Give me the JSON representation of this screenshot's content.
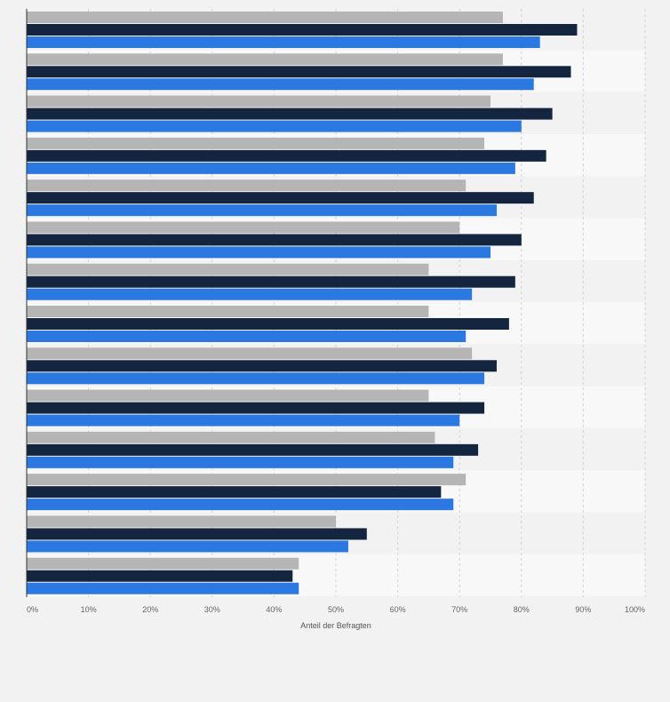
{
  "chart_data": {
    "type": "bar",
    "orientation": "horizontal",
    "title": "",
    "xlabel": "Anteil der Befragten",
    "ylabel": "",
    "xlim": [
      0,
      100
    ],
    "x_unit": "%",
    "x_ticks": [
      0,
      10,
      20,
      30,
      40,
      50,
      60,
      70,
      80,
      90,
      100
    ],
    "x_tick_labels": [
      "0%",
      "10%",
      "20%",
      "30%",
      "40%",
      "50%",
      "60%",
      "70%",
      "80%",
      "90%",
      "100%"
    ],
    "grid": true,
    "legend": null,
    "categories": [
      "",
      "",
      "",
      "",
      "",
      "",
      "",
      "",
      "",
      "",
      "",
      "",
      "",
      ""
    ],
    "series": [
      {
        "name": "series-gray",
        "color": "#b5b5b5",
        "values": [
          77,
          77,
          75,
          74,
          71,
          70,
          65,
          65,
          72,
          65,
          66,
          71,
          50,
          44
        ]
      },
      {
        "name": "series-navy",
        "color": "#14263f",
        "values": [
          89,
          88,
          85,
          84,
          82,
          80,
          79,
          78,
          76,
          74,
          73,
          67,
          55,
          43
        ]
      },
      {
        "name": "series-blue",
        "color": "#2b78e0",
        "values": [
          83,
          82,
          80,
          79,
          76,
          75,
          72,
          71,
          74,
          70,
          69,
          69,
          52,
          44
        ]
      }
    ]
  }
}
